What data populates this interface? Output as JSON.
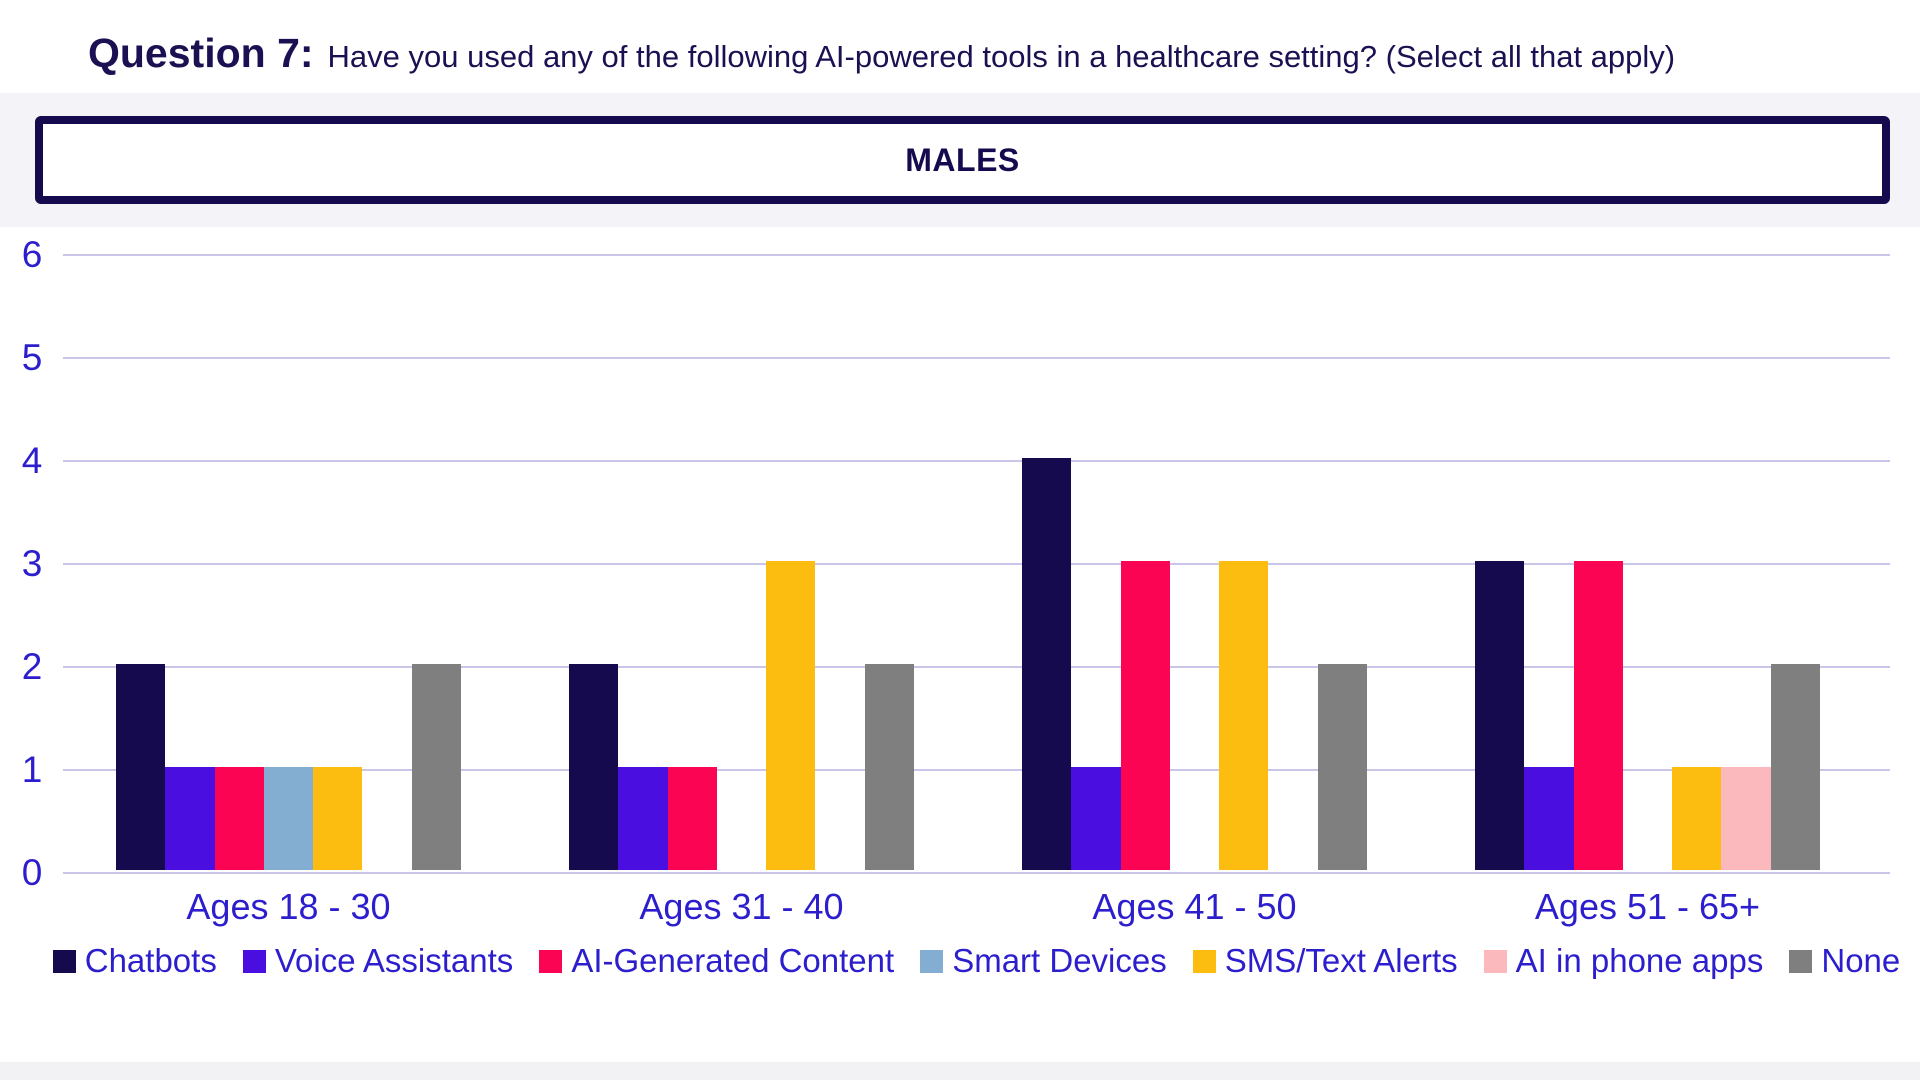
{
  "title": {
    "prefix": "Question 7:",
    "text": "Have you used any of the following AI-powered tools in a healthcare setting? (Select all that apply)"
  },
  "section_header": "MALES",
  "colors": {
    "title_text": "#1b1152",
    "axis_text": "#2c1ecd",
    "gridline": "#c9c6e9",
    "banner_border": "#150a4e",
    "banner_background": "#f4f3f8",
    "page_bottom_strip": "#f2f2f5"
  },
  "chart_data": {
    "type": "bar",
    "title": "MALES",
    "categories": [
      "Ages 18 - 30",
      "Ages 31 - 40",
      "Ages 41 - 50",
      "Ages 51 - 65+"
    ],
    "series": [
      {
        "name": "Chatbots",
        "color": "#140a4d",
        "values": [
          2,
          2,
          4,
          3
        ]
      },
      {
        "name": "Voice Assistants",
        "color": "#4a0fe0",
        "values": [
          1,
          1,
          1,
          1
        ]
      },
      {
        "name": "AI-Generated Content",
        "color": "#fc0454",
        "values": [
          1,
          1,
          3,
          3
        ]
      },
      {
        "name": "Smart Devices",
        "color": "#84aed1",
        "values": [
          1,
          0,
          0,
          0
        ]
      },
      {
        "name": "SMS/Text Alerts",
        "color": "#fcbd10",
        "values": [
          1,
          3,
          3,
          1
        ]
      },
      {
        "name": "AI in phone apps",
        "color": "#fcb9bd",
        "values": [
          0,
          0,
          0,
          1
        ]
      },
      {
        "name": "None",
        "color": "#7f7f7f",
        "values": [
          2,
          2,
          2,
          2
        ]
      }
    ],
    "xlabel": "",
    "ylabel": "",
    "ylim": [
      0,
      6
    ],
    "yticks": [
      0,
      1,
      2,
      3,
      4,
      5,
      6
    ],
    "grid": "horizontal",
    "legend_position": "bottom"
  }
}
